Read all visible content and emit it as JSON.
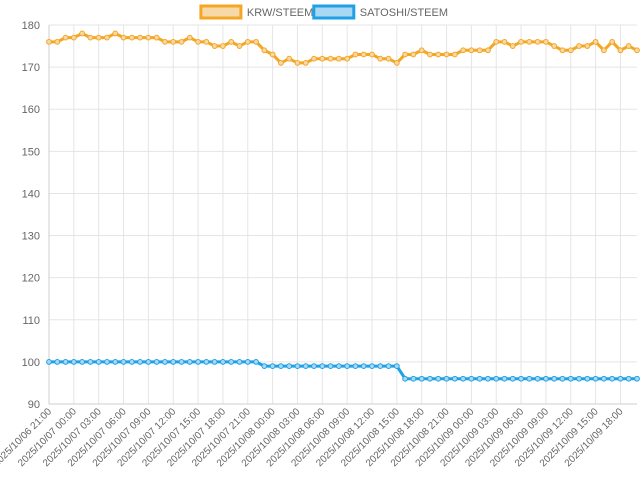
{
  "chart_data": {
    "type": "line",
    "title": "",
    "xlabel": "",
    "ylabel": "",
    "ylim": [
      90,
      180
    ],
    "y_ticks": [
      90,
      100,
      110,
      120,
      130,
      140,
      150,
      160,
      170,
      180
    ],
    "grid": true,
    "legend_position": "top-center",
    "x_tick_labels": [
      "2025/10/06 21:00",
      "2025/10/07 00:00",
      "2025/10/07 03:00",
      "2025/10/07 06:00",
      "2025/10/07 09:00",
      "2025/10/07 12:00",
      "2025/10/07 15:00",
      "2025/10/07 18:00",
      "2025/10/07 21:00",
      "2025/10/08 00:00",
      "2025/10/08 03:00",
      "2025/10/08 06:00",
      "2025/10/08 09:00",
      "2025/10/08 12:00",
      "2025/10/08 15:00",
      "2025/10/08 18:00",
      "2025/10/08 21:00",
      "2025/10/09 00:00",
      "2025/10/09 03:00",
      "2025/10/09 06:00",
      "2025/10/09 09:00",
      "2025/10/09 12:00",
      "2025/10/09 15:00",
      "2025/10/09 18:00"
    ],
    "x_tick_every": 3,
    "series": [
      {
        "name": "KRW/STEEM",
        "color": "#f5a623",
        "fill": "#f7d9a8",
        "values": [
          176,
          176,
          177,
          177,
          178,
          177,
          177,
          177,
          178,
          177,
          177,
          177,
          177,
          177,
          176,
          176,
          176,
          177,
          176,
          176,
          175,
          175,
          176,
          175,
          176,
          176,
          174,
          173,
          171,
          172,
          171,
          171,
          172,
          172,
          172,
          172,
          172,
          173,
          173,
          173,
          172,
          172,
          171,
          173,
          173,
          174,
          173,
          173,
          173,
          173,
          174,
          174,
          174,
          174,
          176,
          176,
          175,
          176,
          176,
          176,
          176,
          175,
          174,
          174,
          175,
          175,
          176,
          174,
          176,
          174,
          175,
          174
        ]
      },
      {
        "name": "SATOSHI/STEEM",
        "color": "#1ea1e6",
        "fill": "#a9d8f2",
        "values": [
          100,
          100,
          100,
          100,
          100,
          100,
          100,
          100,
          100,
          100,
          100,
          100,
          100,
          100,
          100,
          100,
          100,
          100,
          100,
          100,
          100,
          100,
          100,
          100,
          100,
          100,
          99,
          99,
          99,
          99,
          99,
          99,
          99,
          99,
          99,
          99,
          99,
          99,
          99,
          99,
          99,
          99,
          99,
          96,
          96,
          96,
          96,
          96,
          96,
          96,
          96,
          96,
          96,
          96,
          96,
          96,
          96,
          96,
          96,
          96,
          96,
          96,
          96,
          96,
          96,
          96,
          96,
          96,
          96,
          96,
          96,
          96
        ]
      }
    ]
  }
}
